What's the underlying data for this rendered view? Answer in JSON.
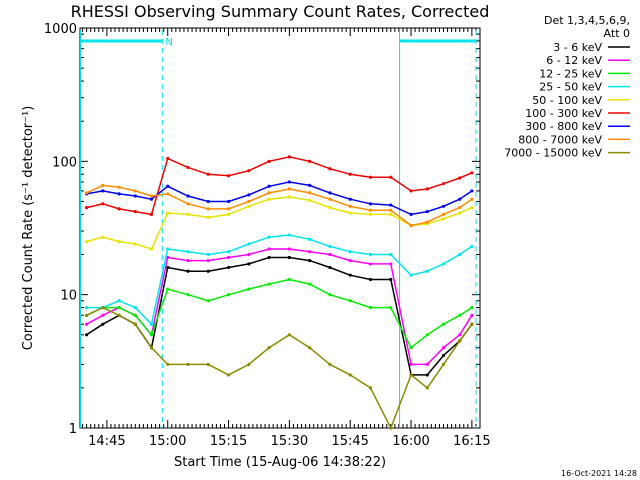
{
  "chart_data": {
    "type": "line",
    "title": "RHESSI Observing Summary Count Rates, Corrected",
    "xlabel": "Start Time (15-Aug-06 14:38:22)",
    "ylabel": "Corrected Count Rate (s⁻¹ detector⁻¹)",
    "y_scale": "log",
    "ylim": [
      1,
      1000
    ],
    "xlim": [
      "14:38:22",
      "16:17:00"
    ],
    "x_ticks": [
      "14:45",
      "15:00",
      "15:15",
      "15:30",
      "15:45",
      "16:00",
      "16:15"
    ],
    "y_ticks": [
      "1",
      "10",
      "100",
      "1000"
    ],
    "legend_header": [
      "Det 1,3,4,5,6,9,",
      "Att 0"
    ],
    "legend_position": "right",
    "markers": [
      {
        "time": "14:38:30",
        "kind": "night-boundary",
        "color": "#00e5ee"
      },
      {
        "time": "14:58:40",
        "kind": "night-boundary",
        "color": "#00e5ee"
      },
      {
        "time": "15:57:10",
        "kind": "night-boundary",
        "color": "#00e5ee"
      },
      {
        "time": "16:16:00",
        "kind": "night-boundary",
        "color": "#00e5ee"
      }
    ],
    "flag_bars": [
      {
        "label": "N",
        "start": "14:38:22",
        "end": "14:58:40",
        "color": "#00e5ee"
      },
      {
        "label": "",
        "start": "15:57:10",
        "end": "16:16:00",
        "color": "#00e5ee"
      }
    ],
    "x": [
      "14:40",
      "14:44",
      "14:48",
      "14:52",
      "14:56",
      "15:00",
      "15:05",
      "15:10",
      "15:15",
      "15:20",
      "15:25",
      "15:30",
      "15:35",
      "15:40",
      "15:45",
      "15:50",
      "15:55",
      "16:00",
      "16:04",
      "16:08",
      "16:12",
      "16:15"
    ],
    "series": [
      {
        "name": "3 - 6 keV",
        "color": "#000000",
        "values": [
          5,
          6,
          7,
          6,
          4,
          16,
          15,
          15,
          16,
          17,
          19,
          19,
          18,
          16,
          14,
          13,
          13,
          2.5,
          2.5,
          3.5,
          4.5,
          6
        ]
      },
      {
        "name": "6 - 12 keV",
        "color": "#ff00ff",
        "values": [
          6,
          7,
          8,
          7,
          5,
          19,
          18,
          18,
          19,
          20,
          22,
          22,
          21,
          20,
          18,
          17,
          17,
          3,
          3,
          4,
          5,
          7
        ]
      },
      {
        "name": "12 - 25 keV",
        "color": "#00ee00",
        "values": [
          7,
          8,
          8,
          7,
          5,
          11,
          10,
          9,
          10,
          11,
          12,
          13,
          12,
          10,
          9,
          8,
          8,
          4,
          5,
          6,
          7,
          8
        ]
      },
      {
        "name": "25 - 50 keV",
        "color": "#00e5ee",
        "values": [
          8,
          8,
          9,
          8,
          6,
          22,
          21,
          20,
          21,
          24,
          27,
          28,
          26,
          23,
          21,
          20,
          20,
          14,
          15,
          17,
          20,
          23
        ]
      },
      {
        "name": "50 - 100 keV",
        "color": "#e5e500",
        "values": [
          25,
          27,
          25,
          24,
          22,
          41,
          40,
          38,
          40,
          46,
          52,
          54,
          51,
          45,
          41,
          40,
          40,
          33,
          34,
          37,
          41,
          45
        ]
      },
      {
        "name": "100 - 300 keV",
        "color": "#ee0000",
        "values": [
          45,
          48,
          44,
          42,
          40,
          105,
          90,
          80,
          78,
          85,
          100,
          108,
          100,
          88,
          80,
          76,
          76,
          60,
          62,
          68,
          75,
          82
        ]
      },
      {
        "name": "300 - 800 keV",
        "color": "#0000ee",
        "values": [
          57,
          60,
          57,
          55,
          52,
          65,
          55,
          50,
          50,
          56,
          65,
          70,
          66,
          58,
          52,
          48,
          47,
          40,
          42,
          46,
          52,
          60
        ]
      },
      {
        "name": "800 - 7000 keV",
        "color": "#ff8c00",
        "values": [
          58,
          66,
          64,
          60,
          55,
          57,
          48,
          44,
          44,
          50,
          58,
          62,
          58,
          52,
          46,
          43,
          43,
          33,
          35,
          40,
          45,
          52
        ]
      },
      {
        "name": "7000 - 15000 keV",
        "color": "#8b8b00",
        "values": [
          7,
          8,
          7,
          6,
          4,
          3,
          3,
          3,
          2.5,
          3,
          4,
          5,
          4,
          3,
          2.5,
          2,
          1,
          2.5,
          2,
          3,
          4.5,
          6
        ]
      }
    ],
    "grid": false
  },
  "footer": {
    "timestamp": "16-Oct-2021 14:28"
  }
}
